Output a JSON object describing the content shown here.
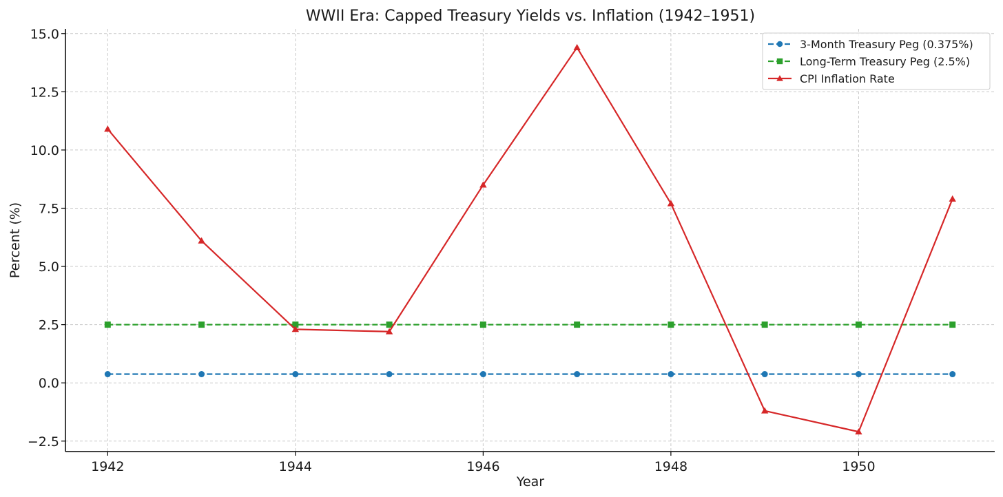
{
  "chart_data": {
    "type": "line",
    "title": "WWII Era: Capped Treasury Yields vs. Inflation (1942–1951)",
    "xlabel": "Year",
    "ylabel": "Percent (%)",
    "x": [
      1942,
      1943,
      1944,
      1945,
      1946,
      1947,
      1948,
      1949,
      1950,
      1951
    ],
    "xlim": [
      1941.55,
      1951.45
    ],
    "ylim": [
      -2.95,
      15.2
    ],
    "xticks": [
      1942,
      1944,
      1946,
      1948,
      1950
    ],
    "xtick_labels": [
      "1942",
      "1944",
      "1946",
      "1948",
      "1950"
    ],
    "yticks": [
      -2.5,
      0.0,
      2.5,
      5.0,
      7.5,
      10.0,
      12.5,
      15.0
    ],
    "ytick_labels": [
      "−2.5",
      "0.0",
      "2.5",
      "5.0",
      "7.5",
      "10.0",
      "12.5",
      "15.0"
    ],
    "grid": true,
    "legend_position": "top-right",
    "series": [
      {
        "name": "3-Month Treasury Peg (0.375%)",
        "color": "#1f77b4",
        "line_style": "dashed",
        "marker": "circle",
        "values": [
          0.375,
          0.375,
          0.375,
          0.375,
          0.375,
          0.375,
          0.375,
          0.375,
          0.375,
          0.375
        ]
      },
      {
        "name": "Long-Term Treasury Peg (2.5%)",
        "color": "#2ca02c",
        "line_style": "dashed",
        "marker": "square",
        "values": [
          2.5,
          2.5,
          2.5,
          2.5,
          2.5,
          2.5,
          2.5,
          2.5,
          2.5,
          2.5
        ]
      },
      {
        "name": "CPI Inflation Rate",
        "color": "#d62728",
        "line_style": "solid",
        "marker": "triangle",
        "values": [
          10.9,
          6.1,
          2.3,
          2.2,
          8.5,
          14.4,
          7.7,
          -1.2,
          -2.1,
          7.9
        ]
      }
    ]
  }
}
